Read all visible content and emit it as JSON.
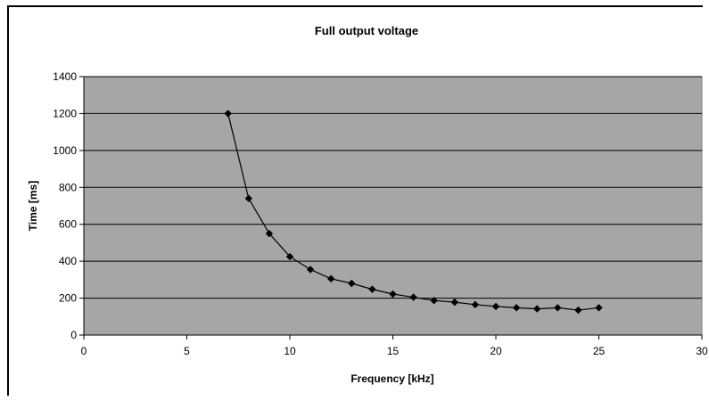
{
  "chart_data": {
    "type": "line",
    "title": "Full output voltage",
    "xlabel": "Frequency [kHz]",
    "ylabel": "Time [ms]",
    "xlim": [
      0,
      30
    ],
    "ylim": [
      0,
      1400
    ],
    "xticks": [
      0,
      5,
      10,
      15,
      20,
      25,
      30
    ],
    "yticks": [
      0,
      200,
      400,
      600,
      800,
      1000,
      1200,
      1400
    ],
    "grid": true,
    "legend": "none",
    "plot_background": "#a6a6a6",
    "line_color": "#000000",
    "marker": "diamond",
    "series": [
      {
        "x": [
          7,
          8,
          9,
          10,
          11,
          12,
          13,
          14,
          15,
          16,
          17,
          18,
          19,
          20,
          21,
          22,
          23,
          24,
          25
        ],
        "y": [
          1200,
          740,
          550,
          425,
          355,
          305,
          280,
          248,
          222,
          205,
          187,
          178,
          165,
          155,
          148,
          142,
          148,
          135,
          148
        ]
      }
    ]
  }
}
